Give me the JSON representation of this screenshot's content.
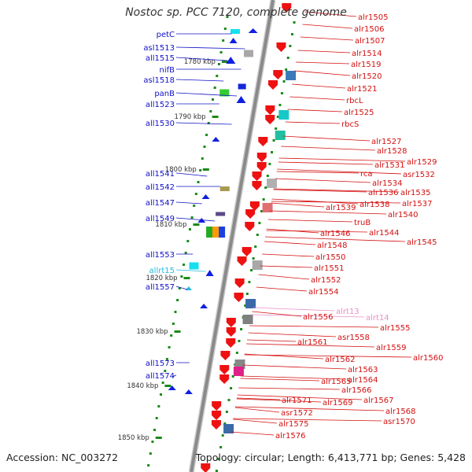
{
  "title": "Nostoc sp. PCC 7120, complete genome",
  "footer": {
    "accession": "Accession: NC_003272",
    "summary": "Topology: circular; Length: 6,413,771 bp; Genes: 5,428"
  },
  "colors": {
    "left_labels": "#1010c8",
    "right_labels": "#d41010",
    "rna_label": "#22bbdd",
    "pink_label": "#e890c8",
    "backbone": "#8a8a8a",
    "ticks": "#1a8a1a"
  },
  "scale": {
    "unit": "kbp",
    "ticks": [
      {
        "label": "1780 kbp",
        "kbp": 1780
      },
      {
        "label": "1790 kbp",
        "kbp": 1790
      },
      {
        "label": "1800 kbp",
        "kbp": 1800
      },
      {
        "label": "1810 kbp",
        "kbp": 1810
      },
      {
        "label": "1820 kbp",
        "kbp": 1820
      },
      {
        "label": "1830 kbp",
        "kbp": 1830
      },
      {
        "label": "1840 kbp",
        "kbp": 1840
      },
      {
        "label": "1850 kbp",
        "kbp": 1850
      }
    ]
  },
  "left_genes": [
    "petC",
    "asl1513",
    "all1515",
    "nifB",
    "asl1518",
    "panB",
    "all1523",
    "all1530",
    "all1541",
    "all1542",
    "all1547",
    "all1549",
    "all1553",
    "allrt15",
    "all1557",
    "all1573",
    "all1574"
  ],
  "right_genes": [
    "alr1505",
    "alr1506",
    "alr1507",
    "alr1514",
    "alr1519",
    "alr1520",
    "alr1521",
    "rbcL",
    "alr1525",
    "rbcS",
    "alr1527",
    "alr1528",
    "alr1529",
    "alr1531",
    "rca",
    "asr1532",
    "alr1534",
    "alr1535",
    "alr1536",
    "alr1537",
    "alr1538",
    "alr1539",
    "alr1540",
    "truB",
    "alr1544",
    "alr1545",
    "alr1546",
    "alr1548",
    "alr1550",
    "alr1551",
    "alr1552",
    "alr1554",
    "alrt13",
    "alrt14",
    "alr1555",
    "alr1556",
    "asr1558",
    "alr1559",
    "alr1560",
    "alr1561",
    "alr1562",
    "alr1563",
    "alr1564",
    "alr1565",
    "alr1566",
    "alr1567",
    "alr1568",
    "alr1569",
    "asr1570",
    "alr1571",
    "asr1572",
    "alr1575",
    "alr1576"
  ]
}
